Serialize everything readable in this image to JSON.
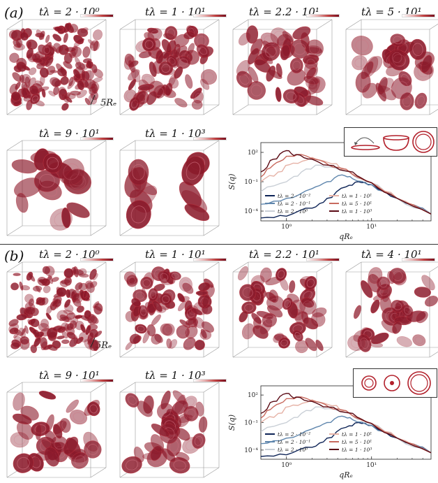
{
  "section_a": {
    "label": "(a)",
    "row1_titles": [
      "tλ = 2 · 10⁰",
      "tλ = 1 · 10¹",
      "tλ = 2.2 · 10¹",
      "tλ = 5 · 10¹"
    ],
    "row2_titles": [
      "tλ = 9 · 10¹",
      "tλ = 1 · 10³"
    ],
    "scale_label": "5Rₑ"
  },
  "section_b": {
    "label": "(b)",
    "row1_titles": [
      "tλ = 2 · 10⁰",
      "tλ = 1 · 10¹",
      "tλ = 2.2 · 10¹",
      "tλ = 4 · 10¹"
    ],
    "row2_titles": [
      "tλ = 9 · 10¹",
      "tλ = 1 · 10³"
    ],
    "scale_label": "5Rₑ"
  },
  "plot_common": {
    "ylabel": "S(q)",
    "xlabel": "qRₑ",
    "y_ticks": [
      "10²",
      "10⁻¹",
      "10⁻⁴"
    ],
    "x_ticks": [
      "10⁰",
      "10¹"
    ],
    "legend": [
      "tλ = 2 · 10⁻²",
      "tλ = 2 · 10⁻¹",
      "tλ = 2 · 10⁰",
      "tλ = 1 · 10¹",
      "tλ = 5 · 10¹",
      "tλ = 1 · 10³"
    ]
  },
  "colors": {
    "cell": "#8b1a2b",
    "cell_edge": "#b8323f",
    "series": [
      "#0d2356",
      "#5f86ad",
      "#c9cfd6",
      "#e6b2a6",
      "#c86a5e",
      "#5a0a14"
    ]
  },
  "chart_data": [
    {
      "type": "line",
      "xlabel": "qRₑ",
      "ylabel": "S(q)",
      "xscale": "log",
      "yscale": "log",
      "xlim": [
        0.5,
        50
      ],
      "ylim": [
        1e-05,
        1000
      ],
      "legend_position": "lower-left",
      "series": [
        {
          "name": "tλ = 2 · 10⁻²",
          "x": [
            0.5,
            1.0,
            2.0,
            3.0,
            5.0,
            7.0,
            10,
            20,
            50
          ],
          "y": [
            2e-05,
            3e-05,
            0.0002,
            0.002,
            0.03,
            0.1,
            0.05,
            0.002,
            5e-05
          ]
        },
        {
          "name": "tλ = 2 · 10⁻¹",
          "x": [
            0.5,
            1.0,
            2.0,
            3.0,
            4.5,
            6.0,
            10,
            20,
            50
          ],
          "y": [
            0.0005,
            0.002,
            0.02,
            0.1,
            0.5,
            0.2,
            0.05,
            0.002,
            5e-05
          ]
        },
        {
          "name": "tλ = 2 · 10⁰",
          "x": [
            0.5,
            1.0,
            1.5,
            2.5,
            4.0,
            6.0,
            10,
            20,
            50
          ],
          "y": [
            0.01,
            0.1,
            1,
            5,
            2,
            0.5,
            0.08,
            0.002,
            5e-05
          ]
        },
        {
          "name": "tλ = 1 · 10¹",
          "x": [
            0.5,
            0.8,
            1.2,
            2.0,
            3.0,
            5.0,
            10,
            20,
            50
          ],
          "y": [
            0.1,
            1,
            8,
            30,
            10,
            2,
            0.08,
            0.002,
            5e-05
          ]
        },
        {
          "name": "tλ = 5 · 10¹",
          "x": [
            0.5,
            0.7,
            1.0,
            1.5,
            2.5,
            4.0,
            10,
            20,
            50
          ],
          "y": [
            0.3,
            5,
            40,
            60,
            15,
            3,
            0.08,
            0.002,
            5e-05
          ]
        },
        {
          "name": "tλ = 1 · 10³",
          "x": [
            0.5,
            0.7,
            1.0,
            1.3,
            2.0,
            3.0,
            6.0,
            10,
            20,
            50
          ],
          "y": [
            1,
            20,
            150,
            60,
            20,
            5,
            1,
            0.08,
            0.002,
            5e-05
          ]
        }
      ]
    },
    {
      "type": "line",
      "xlabel": "qRₑ",
      "ylabel": "S(q)",
      "xscale": "log",
      "yscale": "log",
      "xlim": [
        0.5,
        50
      ],
      "ylim": [
        1e-05,
        1000
      ],
      "legend_position": "lower-left",
      "series": [
        {
          "name": "tλ = 2 · 10⁻²",
          "x": [
            0.5,
            1.0,
            2.0,
            3.0,
            5.0,
            7.0,
            10,
            20,
            50
          ],
          "y": [
            2e-05,
            3e-05,
            0.0002,
            0.002,
            0.03,
            0.1,
            0.05,
            0.002,
            5e-05
          ]
        },
        {
          "name": "tλ = 2 · 10⁻¹",
          "x": [
            0.5,
            1.0,
            2.0,
            3.0,
            4.5,
            6.0,
            10,
            20,
            50
          ],
          "y": [
            0.0005,
            0.002,
            0.02,
            0.1,
            0.5,
            0.2,
            0.05,
            0.002,
            5e-05
          ]
        },
        {
          "name": "tλ = 2 · 10⁰",
          "x": [
            0.5,
            1.0,
            1.5,
            2.5,
            4.0,
            6.0,
            10,
            20,
            50
          ],
          "y": [
            0.01,
            0.1,
            1,
            5,
            2,
            0.5,
            0.08,
            0.002,
            5e-05
          ]
        },
        {
          "name": "tλ = 1 · 10¹",
          "x": [
            0.5,
            0.8,
            1.2,
            2.0,
            3.0,
            5.0,
            10,
            20,
            50
          ],
          "y": [
            0.1,
            1,
            8,
            30,
            10,
            2,
            0.08,
            0.002,
            5e-05
          ]
        },
        {
          "name": "tλ = 5 · 10¹",
          "x": [
            0.5,
            0.7,
            1.0,
            1.5,
            2.5,
            4.0,
            10,
            20,
            50
          ],
          "y": [
            0.3,
            5,
            40,
            60,
            15,
            3,
            0.08,
            0.002,
            5e-05
          ]
        },
        {
          "name": "tλ = 1 · 10³",
          "x": [
            0.5,
            0.7,
            1.0,
            1.3,
            2.0,
            3.0,
            6.0,
            10,
            20,
            50
          ],
          "y": [
            1,
            20,
            150,
            60,
            20,
            5,
            1,
            0.08,
            0.002,
            5e-05
          ]
        }
      ]
    }
  ]
}
